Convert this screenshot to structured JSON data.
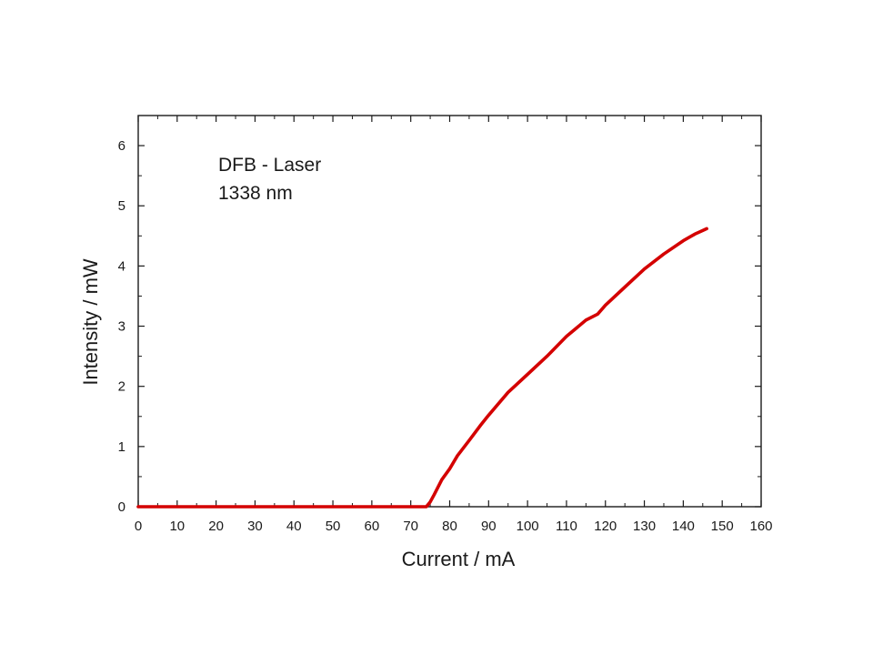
{
  "chart_data": {
    "type": "line",
    "xlabel": "Current / mA",
    "ylabel": "Intensity / mW",
    "xlim": [
      0,
      160
    ],
    "ylim": [
      0,
      6.5
    ],
    "x_ticks": [
      0,
      10,
      20,
      30,
      40,
      50,
      60,
      70,
      80,
      90,
      100,
      110,
      120,
      130,
      140,
      150,
      160
    ],
    "y_ticks": [
      0,
      1,
      2,
      3,
      4,
      5,
      6
    ],
    "grid": false,
    "annotation_lines": [
      "DFB - Laser",
      "1338 nm"
    ],
    "series": [
      {
        "color": "#d40000",
        "x": [
          0,
          10,
          20,
          30,
          40,
          50,
          60,
          70,
          74,
          75,
          76,
          78,
          80,
          82,
          85,
          88,
          90,
          95,
          100,
          105,
          110,
          115,
          118,
          120,
          125,
          130,
          135,
          140,
          143,
          146
        ],
        "y": [
          0,
          0,
          0,
          0,
          0,
          0,
          0,
          0,
          0,
          0.08,
          0.2,
          0.45,
          0.63,
          0.85,
          1.1,
          1.36,
          1.52,
          1.9,
          2.2,
          2.5,
          2.83,
          3.1,
          3.2,
          3.35,
          3.65,
          3.95,
          4.2,
          4.42,
          4.53,
          4.62
        ]
      }
    ]
  }
}
